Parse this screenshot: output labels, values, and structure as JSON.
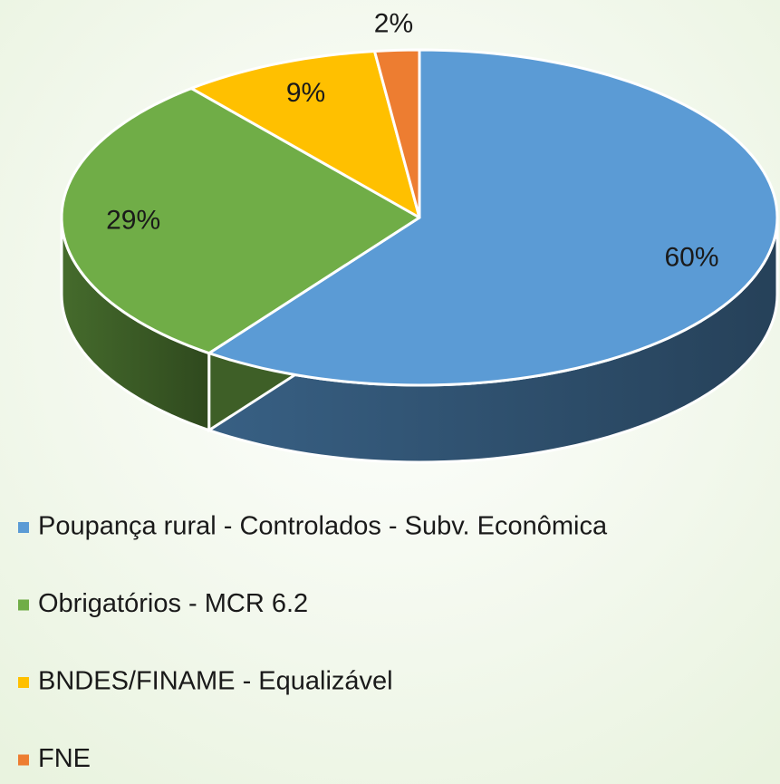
{
  "chart_data": {
    "type": "pie",
    "categories": [
      "Poupança rural - Controlados - Subv. Econômica",
      "Obrigatórios - MCR 6.2",
      "BNDES/FINAME - Equalizável",
      "FNE"
    ],
    "values": [
      60,
      29,
      9,
      2
    ],
    "value_labels": [
      "60%",
      "29%",
      "9%",
      "2%"
    ],
    "colors": [
      "#5b9bd5",
      "#70ad47",
      "#ffc000",
      "#ed7d31"
    ]
  }
}
